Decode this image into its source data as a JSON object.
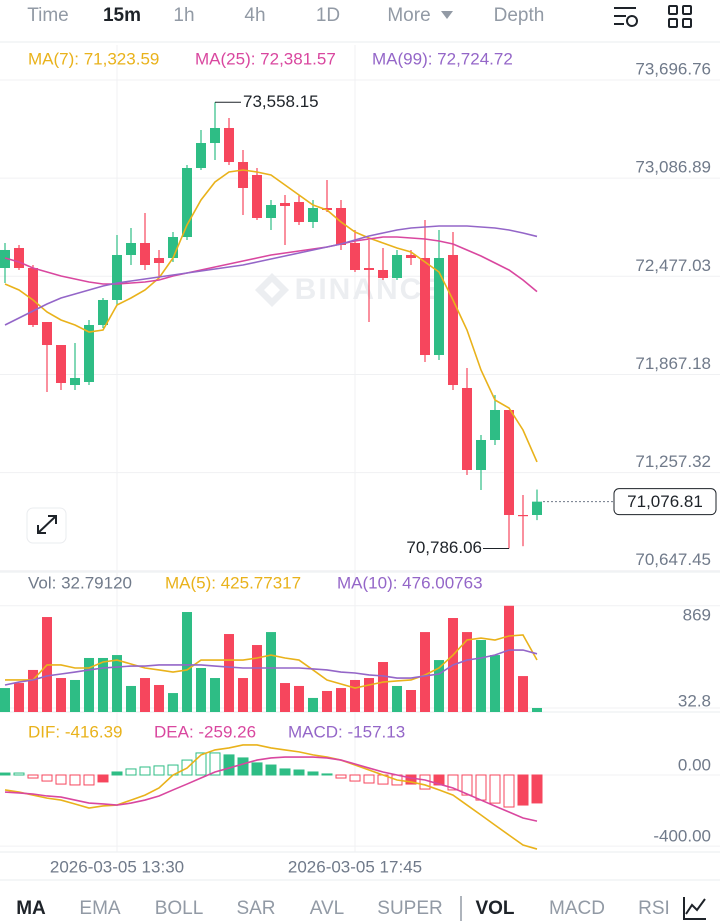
{
  "ui": {
    "tabs": [
      "Time",
      "15m",
      "1h",
      "4h",
      "1D",
      "More",
      "Depth"
    ],
    "active_tab": "15m",
    "bottom_tabs": [
      "MA",
      "EMA",
      "BOLL",
      "SAR",
      "AVL",
      "SUPER",
      "VOL",
      "MACD",
      "RSI"
    ],
    "active_bottom_tabs": [
      "MA",
      "VOL"
    ]
  },
  "chart_data": [
    {
      "type": "candlestick",
      "watermark": "BINANCE",
      "categories": [
        null,
        null,
        null,
        null,
        null,
        null,
        null,
        null,
        "2026-03-05 13:30",
        null,
        null,
        null,
        null,
        null,
        null,
        null,
        null,
        null,
        null,
        null,
        null,
        null,
        null,
        null,
        null,
        "2026-03-05 17:45",
        null,
        null,
        null,
        null,
        null,
        null,
        null,
        null,
        null,
        null,
        null,
        null,
        null
      ],
      "open": [
        72528.6,
        72652.9,
        72528.6,
        72193.0,
        72050.1,
        71801.6,
        71820.3,
        72174.4,
        72329.8,
        72609.4,
        72683.9,
        72590.7,
        72590.7,
        72721.2,
        73149.9,
        73305.2,
        73398.5,
        73187.2,
        73106.5,
        72839.3,
        72932.5,
        72938.7,
        72814.4,
        72901.4,
        72901.4,
        72683.9,
        72528.6,
        72516.2,
        72466.5,
        72609.4,
        72590.7,
        71988.0,
        72609.4,
        71783.0,
        71273.5,
        71459.9,
        71646.3,
        70993.9,
        70993.9
      ],
      "high": [
        72683.9,
        72671.5,
        72547.2,
        72193.0,
        72050.1,
        72062.5,
        72205.5,
        72342.2,
        72733.7,
        72777.2,
        72870.4,
        72640.5,
        72752.3,
        73168.6,
        73386.0,
        73558.15,
        73460.6,
        73261.8,
        73149.9,
        72951.1,
        72982.2,
        72982.2,
        72951.1,
        73075.4,
        72951.1,
        72764.7,
        72702.6,
        72652.9,
        72640.5,
        72640.5,
        72826.9,
        72764.7,
        72752.3,
        71907.3,
        71491.0,
        71739.5,
        71646.3,
        71118.2,
        71152.0
      ],
      "low": [
        72435.4,
        72516.2,
        72162.1,
        71758.1,
        71770.6,
        71770.6,
        71801.6,
        72155.8,
        72298.7,
        72547.2,
        72516.2,
        72466.5,
        72565.9,
        72702.6,
        73137.5,
        73199.7,
        73168.6,
        72857.9,
        72826.9,
        72764.7,
        72671.5,
        72795.8,
        72777.2,
        72876.5,
        72640.5,
        72503.8,
        72193.1,
        72454.1,
        72454.1,
        72547.2,
        71944.5,
        71957.0,
        71770.6,
        71242.4,
        71149.2,
        71428.8,
        70786.06,
        70800.0,
        70962.0
      ],
      "close": [
        72640.5,
        72528.6,
        72174.4,
        72050.1,
        71814.0,
        71845.1,
        72174.4,
        72329.8,
        72609.4,
        72683.9,
        72547.2,
        72559.7,
        72721.2,
        73149.9,
        73305.2,
        73398.5,
        73187.2,
        73025.7,
        72839.3,
        72920.0,
        72913.8,
        72814.4,
        72901.4,
        72889.0,
        72671.5,
        72516.2,
        72516.2,
        72466.5,
        72609.4,
        72590.7,
        71988.0,
        72590.7,
        71801.6,
        71273.5,
        71459.9,
        71646.3,
        70993.9,
        70987.0,
        71076.81
      ],
      "up_color": "#2ebd85",
      "down_color": "#f6465d",
      "max_label": "73,558.15",
      "min_label": "70,786.06",
      "last_label": "71,076.81",
      "ylim": [
        70639.7,
        73914.2
      ],
      "yticks": [
        {
          "value": 73696.76,
          "label": "73,696.76"
        },
        {
          "value": 73086.89,
          "label": "73,086.89"
        },
        {
          "value": 72477.03,
          "label": "72,477.03"
        },
        {
          "value": 71867.18,
          "label": "71,867.18"
        },
        {
          "value": 71257.32,
          "label": "71,257.32"
        },
        {
          "value": 70647.45,
          "label": "70,647.45"
        }
      ],
      "grid": true,
      "series": [
        {
          "name": "MA(7): 71,323.59",
          "color": "#e9b21b",
          "values": [
            72429.2,
            72391.9,
            72329.8,
            72255.2,
            72205.5,
            72174.4,
            72131.0,
            72143.4,
            72298.7,
            72342.2,
            72391.9,
            72466.5,
            72590.7,
            72795.8,
            72951.1,
            73063.0,
            73125.1,
            73137.5,
            73125.1,
            73106.5,
            73044.3,
            72982.2,
            72920.1,
            72889.0,
            72814.4,
            72752.3,
            72715.0,
            72683.9,
            72652.9,
            72628.0,
            72565.9,
            72503.8,
            72329.8,
            72143.4,
            71894.8,
            71708.4,
            71658.7,
            71522.0,
            71323.59
          ]
        },
        {
          "name": "MA(25): 72,381.57",
          "color": "#d9479f",
          "values": [
            72590.7,
            72565.9,
            72528.6,
            72503.8,
            72478.9,
            72460.3,
            72441.6,
            72429.2,
            72429.2,
            72435.4,
            72441.6,
            72454.0,
            72478.9,
            72497.5,
            72516.2,
            72534.8,
            72553.5,
            72572.1,
            72590.7,
            72609.4,
            72621.8,
            72634.2,
            72646.7,
            72659.1,
            72677.7,
            72696.4,
            72708.8,
            72721.2,
            72721.2,
            72715.0,
            72708.8,
            72696.4,
            72677.7,
            72640.4,
            72603.2,
            72559.7,
            72516.2,
            72454.0,
            72381.57
          ]
        },
        {
          "name": "MA(99): 72,724.72",
          "color": "#9466c8",
          "values": [
            72174.4,
            72217.9,
            72261.4,
            72304.9,
            72342.2,
            72367.1,
            72391.9,
            72416.8,
            72435.4,
            72447.8,
            72460.3,
            72472.7,
            72485.1,
            72497.5,
            72510.0,
            72522.4,
            72534.8,
            72547.2,
            72565.9,
            72584.5,
            72603.2,
            72621.8,
            72640.4,
            72659.1,
            72677.7,
            72702.6,
            72727.4,
            72746.1,
            72764.7,
            72777.1,
            72783.4,
            72789.6,
            72789.6,
            72789.6,
            72783.4,
            72777.1,
            72764.7,
            72746.1,
            72724.72
          ]
        }
      ]
    },
    {
      "type": "volume",
      "ylim": [
        0,
        900
      ],
      "yticks": [
        869,
        32.8
      ],
      "grid": true,
      "series": [
        {
          "name": "Vol: 32.79120",
          "color": "#707a8a",
          "values": [
            196,
            237,
            344,
            777,
            278,
            262,
            442,
            442,
            466,
            213,
            278,
            221,
            155,
            818,
            360,
            278,
            638,
            278,
            548,
            654,
            237,
            213,
            115,
            172,
            196,
            262,
            278,
            409,
            213,
            180,
            654,
            425,
            769,
            654,
            589,
            466,
            869,
            294,
            32.7912
          ]
        },
        {
          "name": "MA(5): 425.77317",
          "color": "#e9b21b",
          "values": [
            262,
            262,
            262,
            385,
            385,
            360,
            360,
            409,
            425,
            393,
            360,
            344,
            327,
            344,
            425,
            425,
            425,
            425,
            442,
            466,
            442,
            425,
            344,
            262,
            229,
            196,
            221,
            245,
            254,
            262,
            303,
            360,
            466,
            589,
            605,
            589,
            622,
            630,
            425.77317
          ]
        },
        {
          "name": "MA(10): 476.00763",
          "color": "#9466c8",
          "values": [
            221,
            245,
            262,
            295,
            311,
            327,
            344,
            360,
            368,
            376,
            376,
            385,
            385,
            385,
            385,
            376,
            368,
            360,
            360,
            360,
            360,
            360,
            352,
            344,
            327,
            319,
            303,
            295,
            278,
            278,
            295,
            311,
            385,
            425,
            442,
            466,
            507,
            507,
            476.00763
          ]
        }
      ]
    },
    {
      "type": "macd",
      "ylim": [
        -433,
        298
      ],
      "yticks": [
        {
          "value": 0,
          "label": "0.00"
        },
        {
          "value": -400,
          "label": "-400.00"
        }
      ],
      "grid": true,
      "series": [
        {
          "name": "DIF: -416.39",
          "color": "#e9b21b",
          "values": [
            -84,
            -96,
            -113,
            -130,
            -141,
            -163,
            -186,
            -174,
            -169,
            -141,
            -113,
            -73,
            0,
            39,
            113,
            141,
            152,
            169,
            169,
            152,
            141,
            130,
            113,
            101,
            84,
            56,
            28,
            0,
            -28,
            -39,
            -56,
            -84,
            -113,
            -169,
            -225,
            -282,
            -338,
            -394,
            -416.39
          ]
        },
        {
          "name": "DEA: -259.26",
          "color": "#d9479f",
          "values": [
            -96,
            -101,
            -107,
            -118,
            -124,
            -141,
            -158,
            -163,
            -169,
            -158,
            -141,
            -118,
            -84,
            -51,
            -17,
            17,
            39,
            62,
            84,
            96,
            101,
            101,
            101,
            96,
            84,
            62,
            39,
            17,
            0,
            -17,
            -28,
            -51,
            -73,
            -107,
            -141,
            -175,
            -208,
            -242,
            -259.26
          ]
        },
        {
          "name": "MACD: -157.13",
          "color": "#9466c8",
          "values": [
            11,
            11,
            -17,
            -34,
            -51,
            -56,
            -56,
            -39,
            17,
            34,
            45,
            51,
            56,
            84,
            124,
            124,
            113,
            96,
            68,
            56,
            34,
            28,
            17,
            6,
            -17,
            -34,
            -45,
            -51,
            -56,
            -51,
            -79,
            -56,
            -84,
            -113,
            -141,
            -158,
            -180,
            -169,
            -157.13
          ]
        }
      ]
    }
  ]
}
